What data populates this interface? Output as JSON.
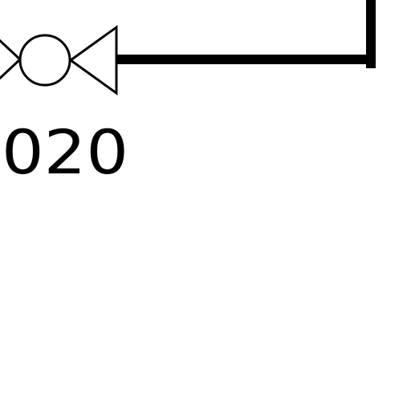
{
  "diagram": {
    "valve": {
      "tag_label": "020"
    },
    "colors": {
      "background": "#ffffff",
      "line": "#000000"
    },
    "symbol": "butterfly-valve-symbol"
  }
}
